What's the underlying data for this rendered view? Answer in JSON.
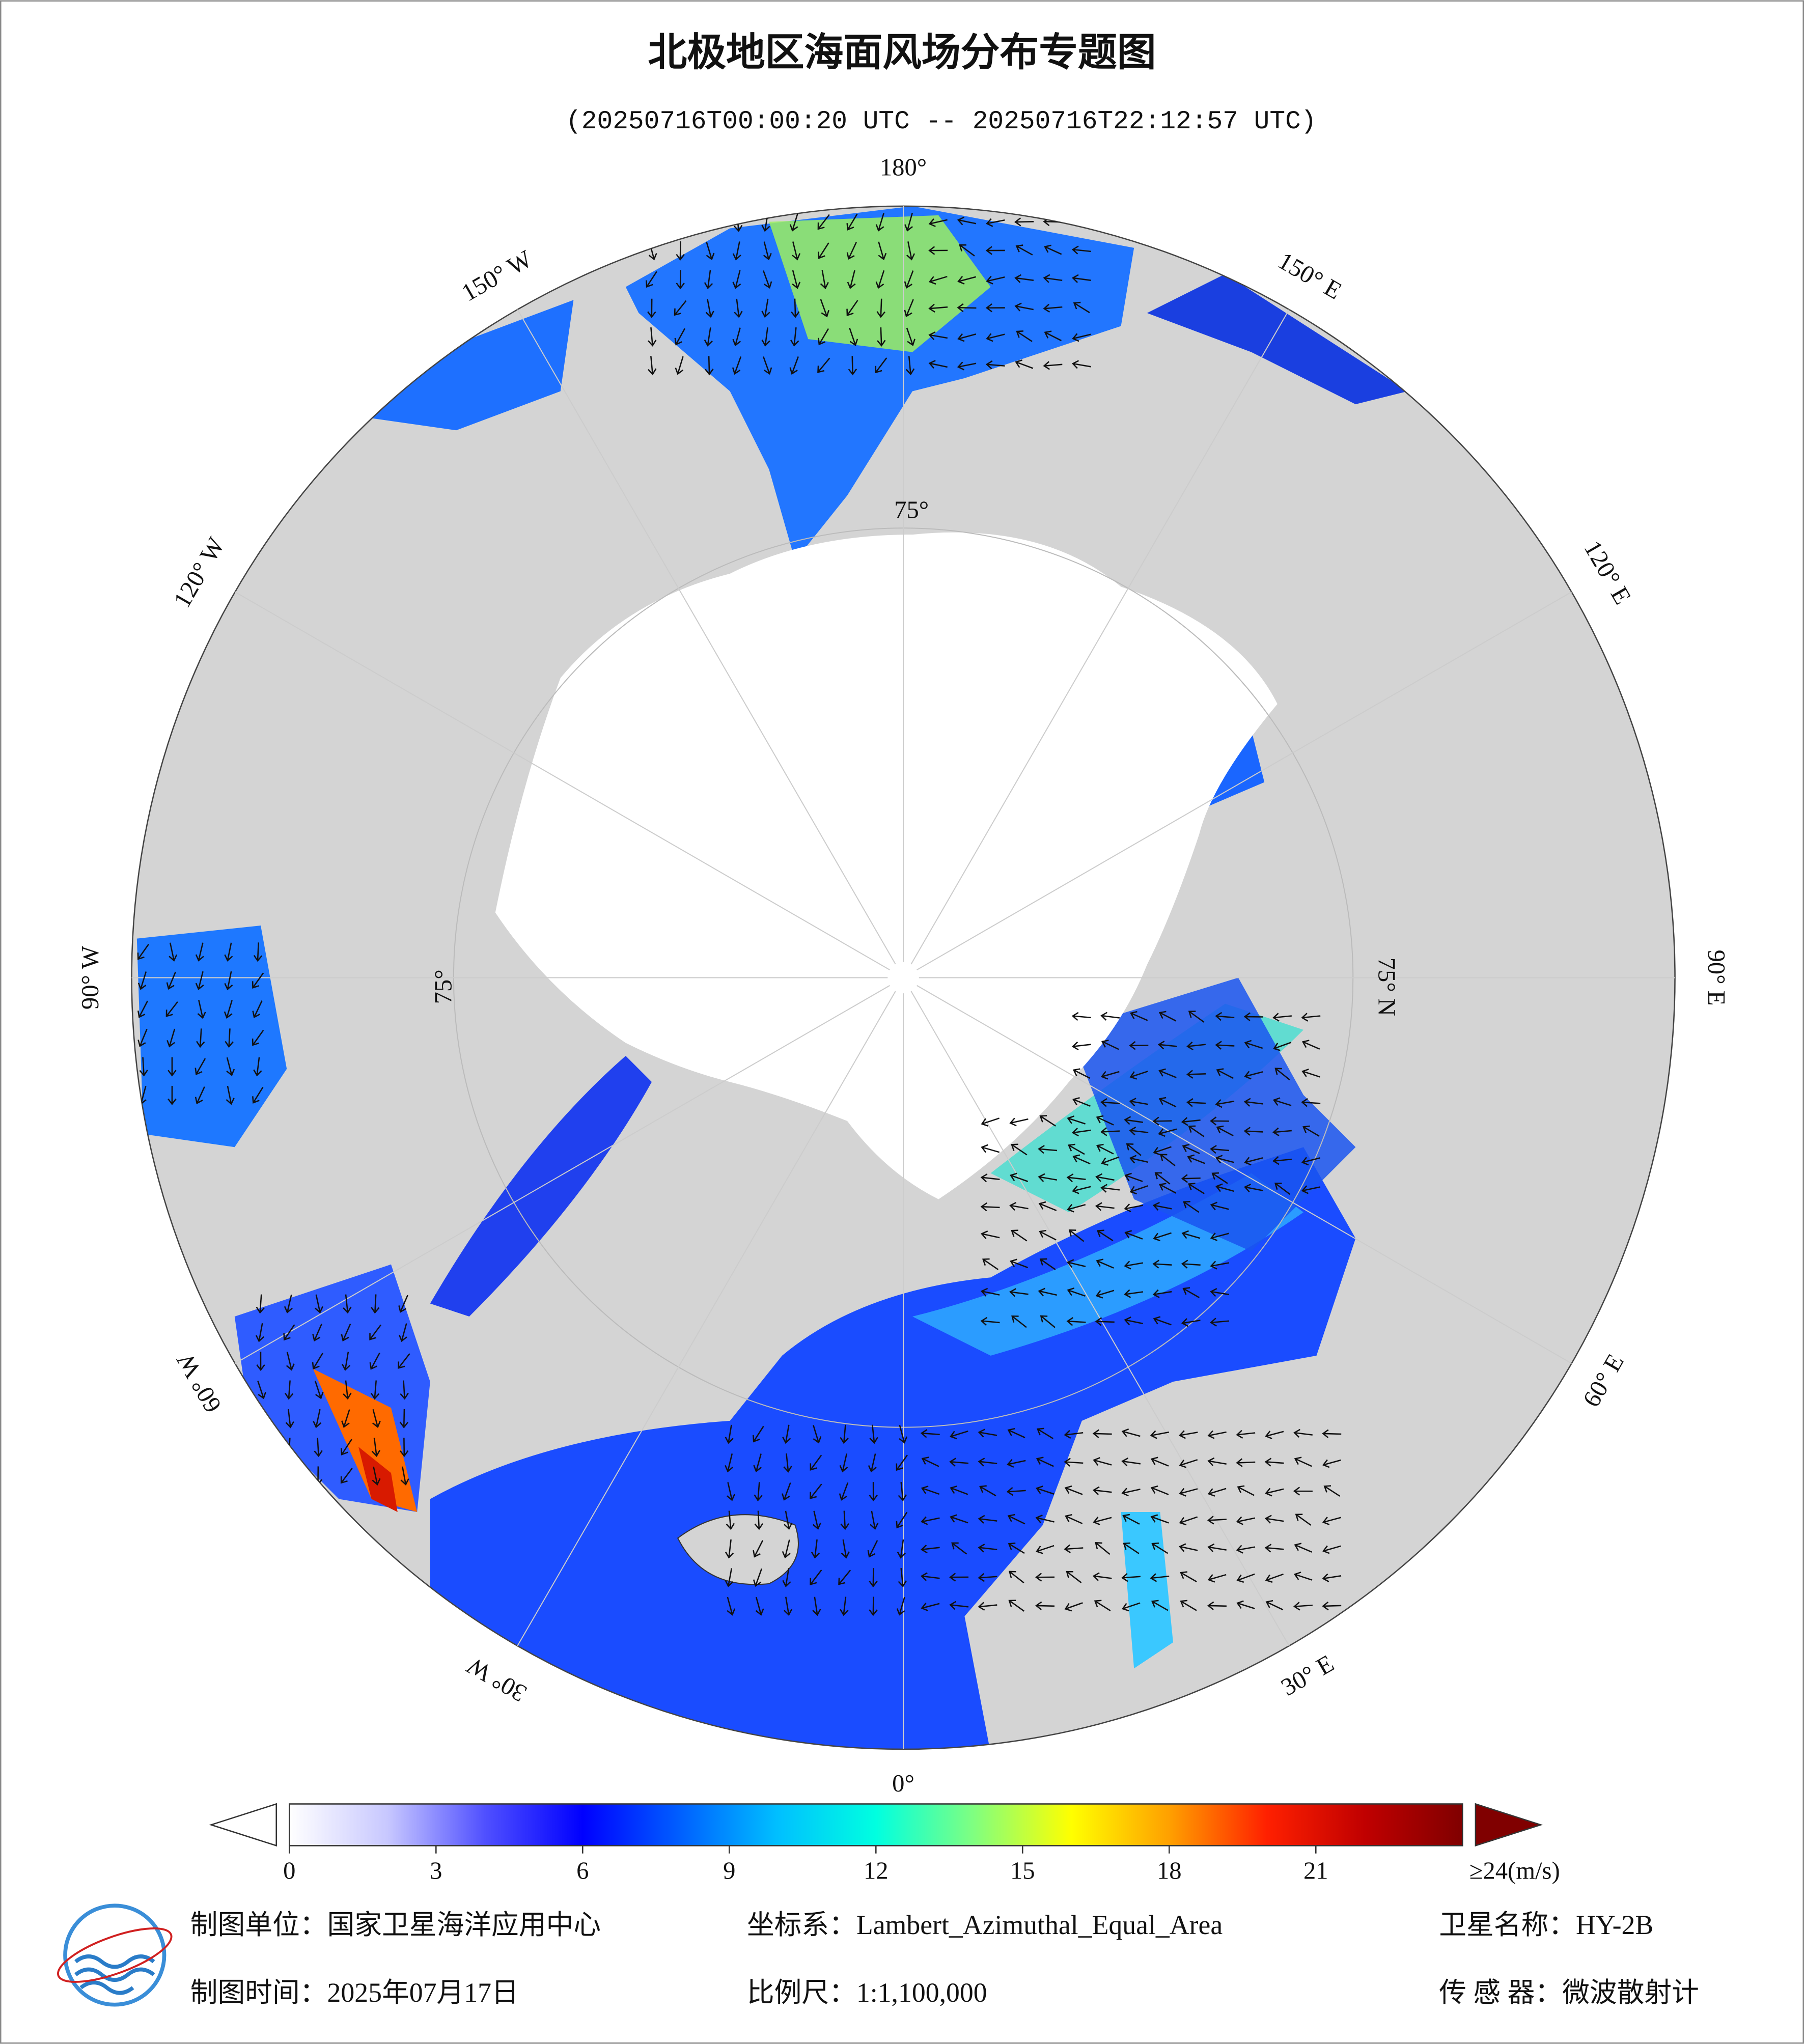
{
  "header": {
    "title": "北极地区海面风场分布专题图",
    "subtitle": "(20250716T00:00:20 UTC -- 20250716T22:12:57 UTC)"
  },
  "map": {
    "lon_labels": [
      "180°",
      "150° E",
      "120° E",
      "90° E",
      "60° E",
      "30° E",
      "0°",
      "30° W",
      "60° W",
      "90° W",
      "120° W",
      "150° W"
    ],
    "lat_labels": [
      "75°",
      "75° N",
      "75°"
    ]
  },
  "colorbar": {
    "range": [
      0,
      24
    ],
    "ticks": [
      0,
      3,
      6,
      9,
      12,
      15,
      18,
      21
    ],
    "end_label": "≥24(m/s)",
    "colors": [
      "#ffffff",
      "#c8c8ff",
      "#5050ff",
      "#0000ff",
      "#0060ff",
      "#00c0ff",
      "#00ffe0",
      "#80ff80",
      "#ffff00",
      "#ffa000",
      "#ff2000",
      "#c00000",
      "#800000"
    ]
  },
  "footer": {
    "unit": "制图单位：国家卫星海洋应用中心",
    "crs": "坐标系：Lambert_Azimuthal_Equal_Area",
    "satellite": "卫星名称：HY-2B",
    "date": "制图时间：2025年07月17日",
    "scale": "比例尺：1:1,100,000",
    "sensor": "传 感 器：微波散射计"
  }
}
